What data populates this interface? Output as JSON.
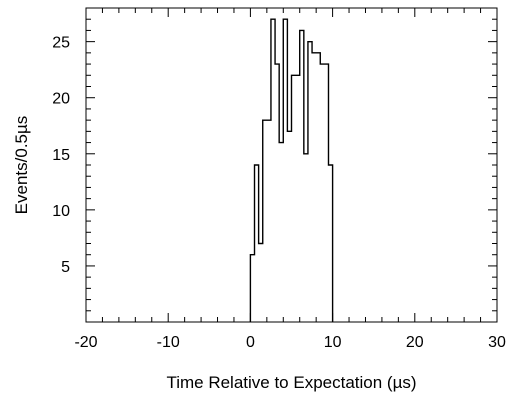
{
  "chart_data": {
    "type": "bar",
    "style": "step-histogram",
    "xlabel": "Time Relative to Expectation (µs)",
    "ylabel": "Events/0.5µs",
    "xlim": [
      -20,
      30
    ],
    "ylim": [
      0,
      28
    ],
    "bin_width": 0.5,
    "x_ticks": [
      -20,
      -10,
      0,
      10,
      20,
      30
    ],
    "y_ticks": [
      5,
      10,
      15,
      20,
      25
    ],
    "grid": false,
    "color": "#000000",
    "bins": [
      {
        "x": 0.0,
        "count": 6
      },
      {
        "x": 0.5,
        "count": 14
      },
      {
        "x": 1.0,
        "count": 7
      },
      {
        "x": 1.5,
        "count": 18
      },
      {
        "x": 2.0,
        "count": 18
      },
      {
        "x": 2.5,
        "count": 27
      },
      {
        "x": 3.0,
        "count": 23
      },
      {
        "x": 3.5,
        "count": 16
      },
      {
        "x": 4.0,
        "count": 27
      },
      {
        "x": 4.5,
        "count": 17
      },
      {
        "x": 5.0,
        "count": 22
      },
      {
        "x": 5.5,
        "count": 22
      },
      {
        "x": 6.0,
        "count": 26
      },
      {
        "x": 6.5,
        "count": 15
      },
      {
        "x": 7.0,
        "count": 25
      },
      {
        "x": 7.5,
        "count": 24
      },
      {
        "x": 8.0,
        "count": 24
      },
      {
        "x": 8.5,
        "count": 23
      },
      {
        "x": 9.0,
        "count": 23
      },
      {
        "x": 9.5,
        "count": 14
      }
    ]
  }
}
